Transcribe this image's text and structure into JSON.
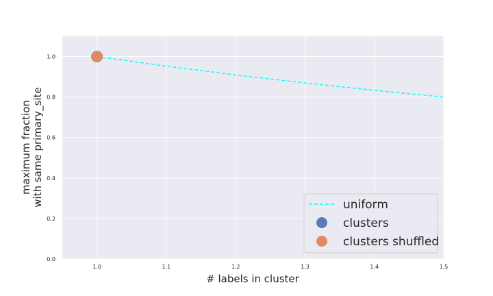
{
  "chart_data": {
    "type": "scatter",
    "xlabel": "# labels in cluster",
    "ylabel_lines": [
      "maximum fraction",
      "with same primary_site"
    ],
    "xlim": [
      0.95,
      1.5
    ],
    "ylim": [
      0.0,
      1.1
    ],
    "x_ticks": [
      1.0,
      1.1,
      1.2,
      1.3,
      1.4,
      1.5
    ],
    "x_tick_labels": [
      "1.0",
      "1.1",
      "1.2",
      "1.3",
      "1.4",
      "1.5"
    ],
    "y_ticks": [
      0.0,
      0.2,
      0.4,
      0.6,
      0.8,
      1.0
    ],
    "y_tick_labels": [
      "0.0",
      "0.2",
      "0.4",
      "0.6",
      "0.8",
      "1.0"
    ],
    "grid": true,
    "legend_position": "lower-right",
    "series": [
      {
        "name": "uniform",
        "kind": "line",
        "style": "dashed",
        "color": "#00ffff",
        "x": [
          1.0,
          1.1,
          1.2,
          1.3,
          1.4,
          1.5
        ],
        "y": [
          1.0,
          0.9524,
          0.9091,
          0.8696,
          0.8333,
          0.8
        ]
      },
      {
        "name": "clusters",
        "kind": "scatter",
        "color": "#5a7ab8",
        "x": [
          1.0
        ],
        "y": [
          1.0
        ]
      },
      {
        "name": "clusters shuffled",
        "kind": "scatter",
        "color": "#e08a62",
        "x": [
          1.0
        ],
        "y": [
          1.0
        ]
      }
    ]
  }
}
